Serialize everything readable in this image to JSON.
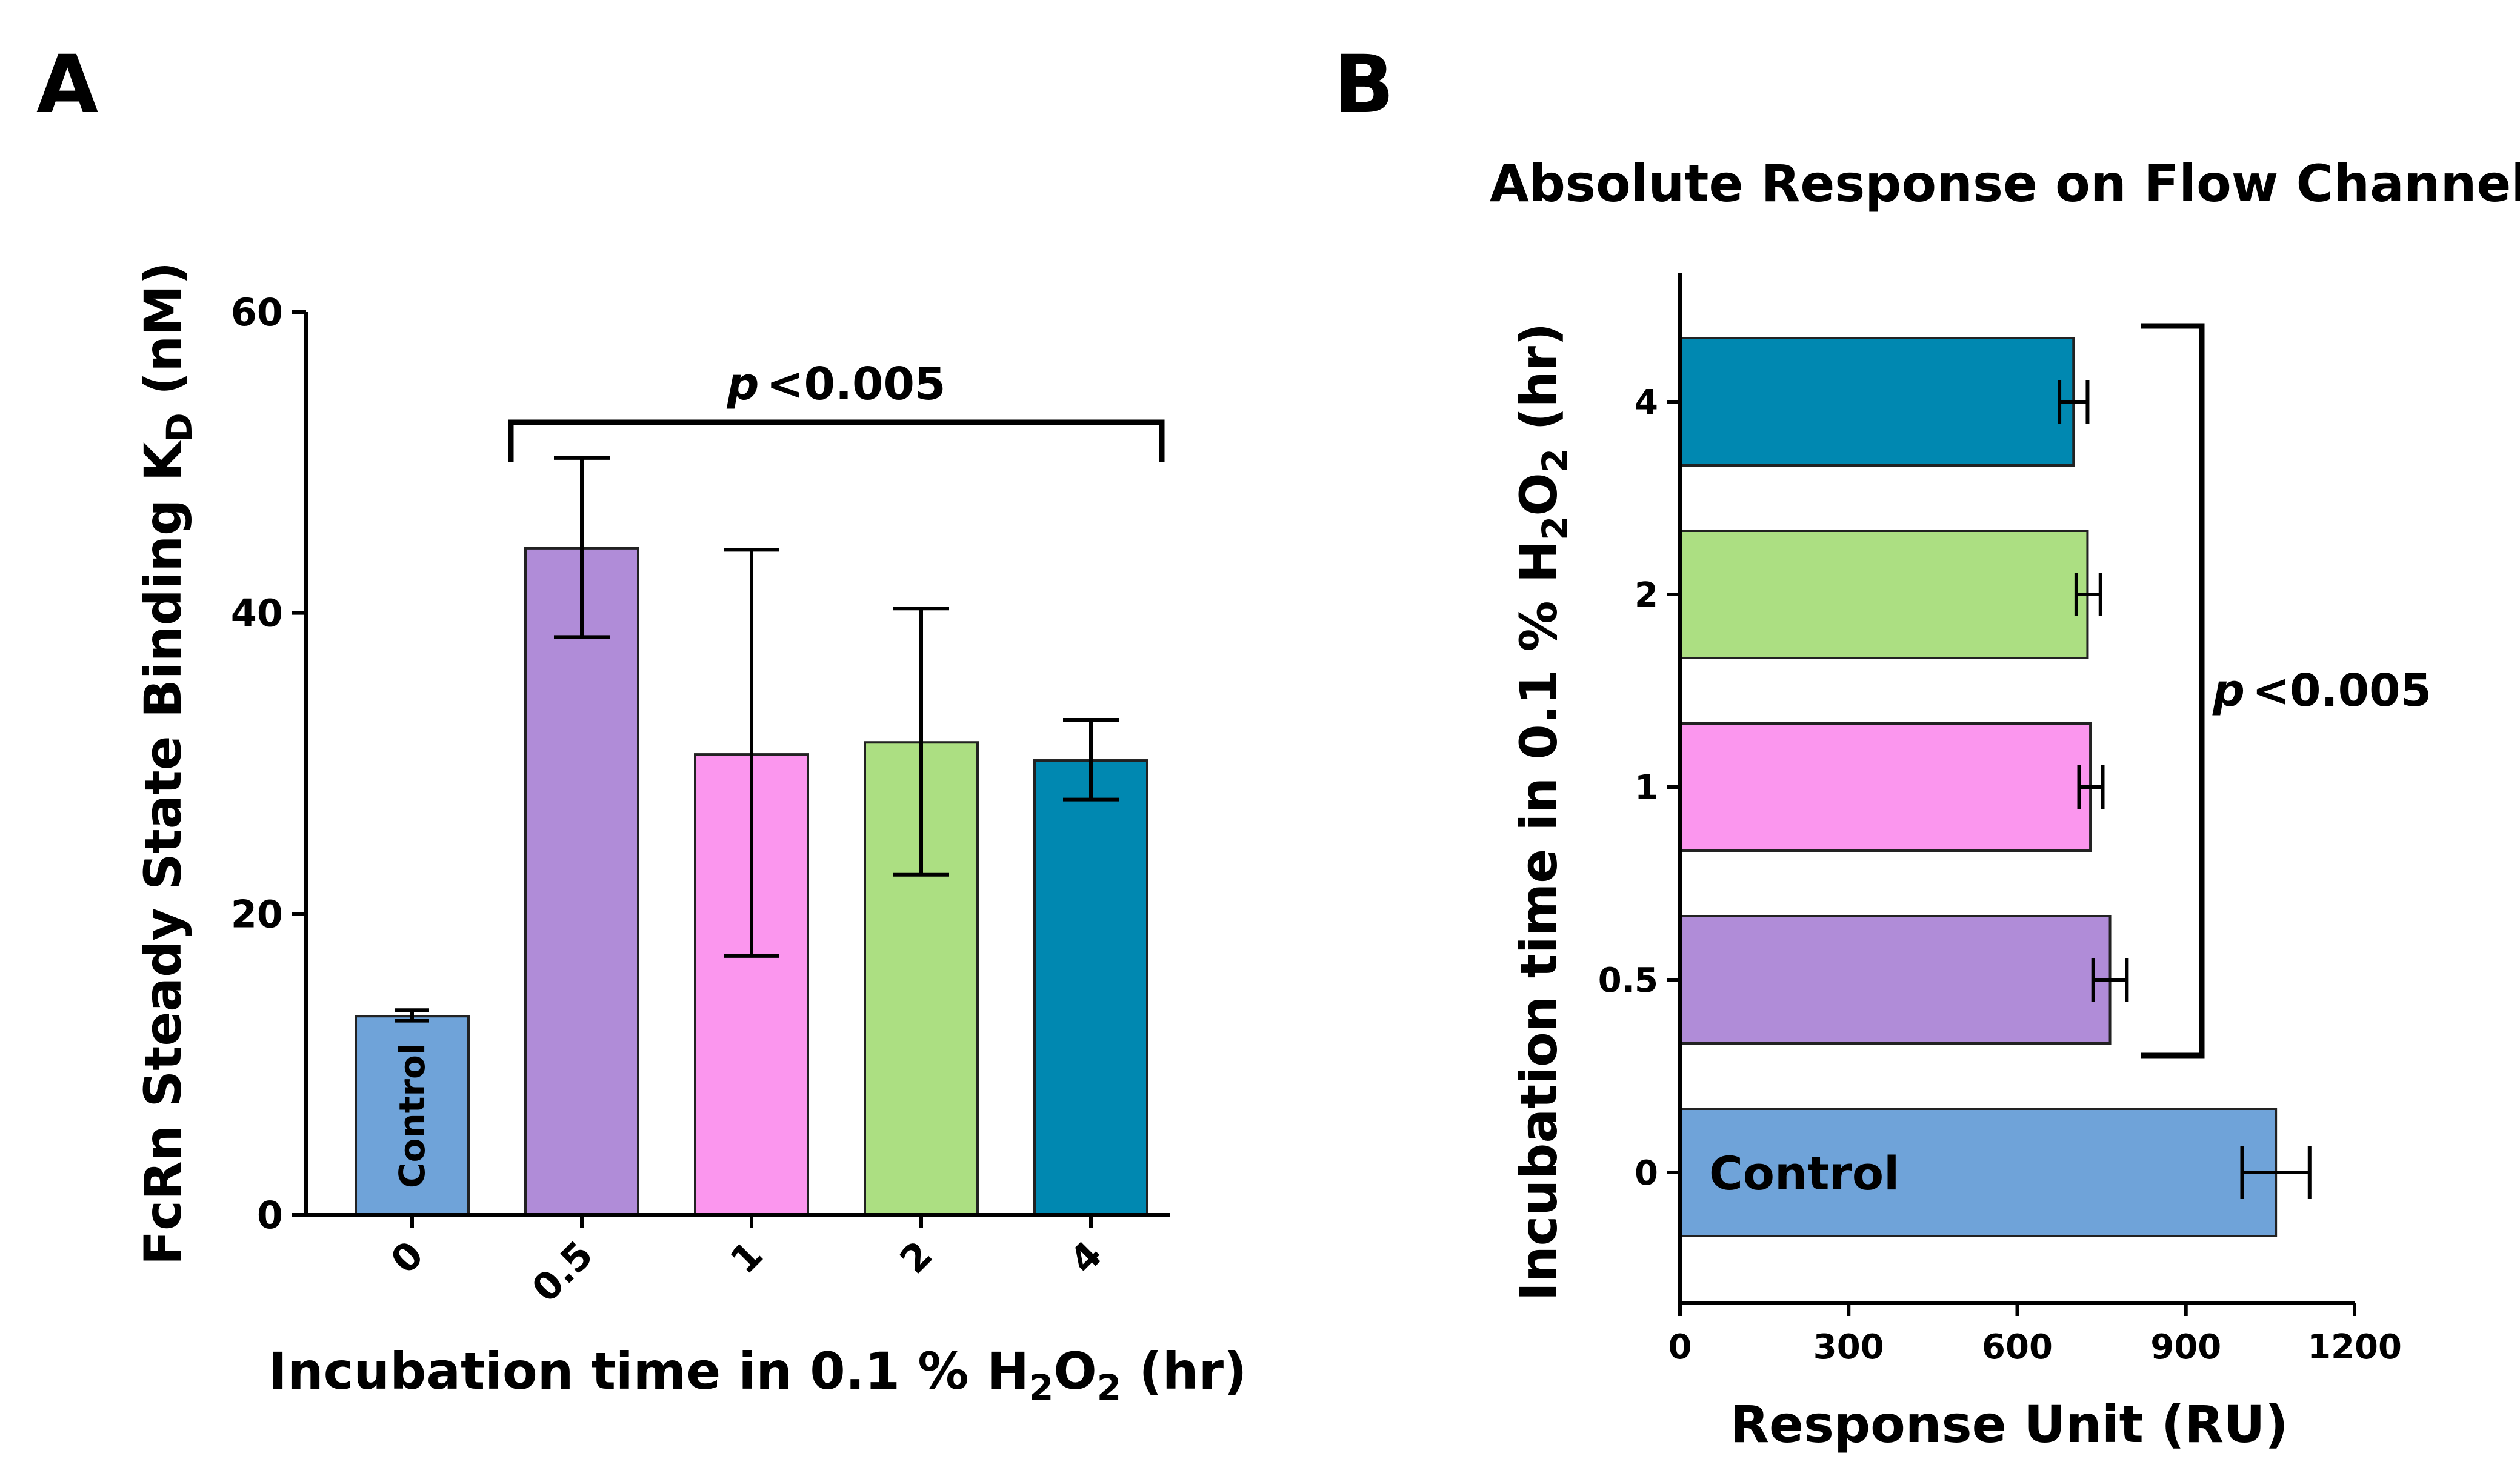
{
  "figure": {
    "panel_a_label": "A",
    "panel_b_label": "B"
  },
  "chart_data": [
    {
      "type": "bar",
      "orientation": "vertical",
      "panel": "A",
      "title": "",
      "categories": [
        "0",
        "0.5",
        "1",
        "2",
        "4"
      ],
      "values": [
        13.2,
        44.3,
        30.6,
        31.4,
        30.2
      ],
      "error_low": [
        12.9,
        38.4,
        17.2,
        22.6,
        27.6
      ],
      "error_high": [
        13.6,
        50.3,
        44.2,
        40.3,
        32.9
      ],
      "colors": [
        "#6fa3d9",
        "#b08cd8",
        "#fb96ee",
        "#acdf82",
        "#0088b1"
      ],
      "bar_labels": [
        "Control",
        "",
        "",
        "",
        ""
      ],
      "ylabel_main": "FcRn Steady State Binding K",
      "ylabel_sub": "D",
      "ylabel_tail": " (nM)",
      "xlabel_main": "Incubation time in 0.1 % H",
      "xlabel_sub1": "2",
      "xlabel_mid": "O",
      "xlabel_sub2": "2",
      "xlabel_tail": " (hr)",
      "ylim": [
        0,
        60
      ],
      "yticks": [
        "0",
        "20",
        "40",
        "60"
      ],
      "significance": {
        "p_symbol": "p",
        "text": "<0.005",
        "from_category": "0.5",
        "to_category": "4"
      },
      "grid": false
    },
    {
      "type": "bar",
      "orientation": "horizontal",
      "panel": "B",
      "title": "Absolute Response on Flow Channel",
      "categories": [
        "4",
        "2",
        "1",
        "0.5",
        "0"
      ],
      "values": [
        700,
        725,
        730,
        765,
        1060
      ],
      "error_low": [
        675,
        705,
        710,
        735,
        1000
      ],
      "error_high": [
        725,
        748,
        752,
        795,
        1120
      ],
      "colors": [
        "#0088b1",
        "#acdf82",
        "#fb96ee",
        "#b08cd8",
        "#6fa3d9"
      ],
      "bar_labels": [
        "",
        "",
        "",
        "",
        "Control"
      ],
      "xlabel": "Response Unit (RU)",
      "ylabel_main": "Incubation time in 0.1 % H",
      "ylabel_sub1": "2",
      "ylabel_mid": "O",
      "ylabel_sub2": "2",
      "ylabel_tail": " (hr)",
      "xlim": [
        0,
        1200
      ],
      "xticks": [
        "0",
        "300",
        "600",
        "900",
        "1200"
      ],
      "significance": {
        "p_symbol": "p",
        "text": "<0.005",
        "from_category": "4",
        "to_category": "0.5"
      },
      "grid": false
    }
  ]
}
